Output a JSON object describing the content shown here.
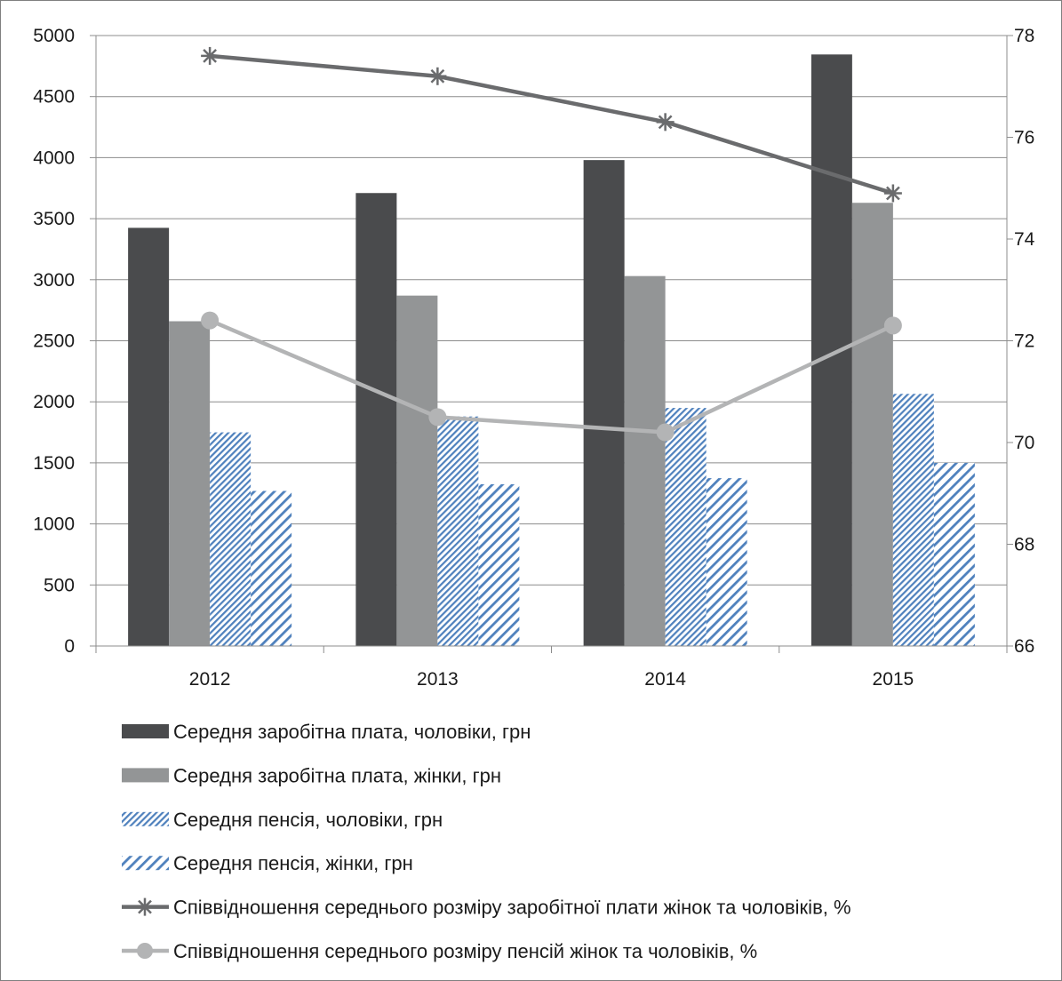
{
  "chart_data": {
    "type": "bar",
    "categories": [
      "2012",
      "2013",
      "2014",
      "2015"
    ],
    "series": [
      {
        "name": "Середня заробітна плата, чоловіки, грн",
        "type": "bar",
        "axis": "left",
        "values": [
          3425,
          3710,
          3980,
          4845
        ],
        "color": "#4a4b4d",
        "pattern": "solid"
      },
      {
        "name": "Середня заробітна плата, жінки, грн",
        "type": "bar",
        "axis": "left",
        "values": [
          2660,
          2870,
          3030,
          3630
        ],
        "color": "#939596",
        "pattern": "solid"
      },
      {
        "name": "Середня пенсія, чоловіки, грн",
        "type": "bar",
        "axis": "left",
        "values": [
          1750,
          1880,
          1950,
          2065
        ],
        "color": "#4f81bd",
        "pattern": "dense-diagonal"
      },
      {
        "name": "Середня пенсія, жінки, грн",
        "type": "bar",
        "axis": "left",
        "values": [
          1270,
          1325,
          1375,
          1500
        ],
        "color": "#4f81bd",
        "pattern": "wide-diagonal"
      },
      {
        "name": "Співвідношення середнього розміру заробітної плати жінок та чоловіків, %",
        "type": "line",
        "axis": "right",
        "marker": "star",
        "values": [
          77.6,
          77.2,
          76.3,
          74.9
        ],
        "color": "#6a6b6d"
      },
      {
        "name": "Співвідношення середнього розміру пенсій жінок та чоловіків, %",
        "type": "line",
        "axis": "right",
        "marker": "circle",
        "values": [
          72.4,
          70.5,
          70.2,
          72.3
        ],
        "color": "#b3b4b5"
      }
    ],
    "y_left": {
      "min": 0,
      "max": 5000,
      "ticks": [
        "0",
        "500",
        "1000",
        "1500",
        "2000",
        "2500",
        "3000",
        "3500",
        "4000",
        "4500",
        "5000"
      ]
    },
    "y_right": {
      "min": 66,
      "max": 78,
      "ticks": [
        "66",
        "68",
        "70",
        "72",
        "74",
        "76",
        "78"
      ]
    },
    "grid": true,
    "legend_position": "bottom",
    "title": "",
    "xlabel": "",
    "ylabel": ""
  }
}
